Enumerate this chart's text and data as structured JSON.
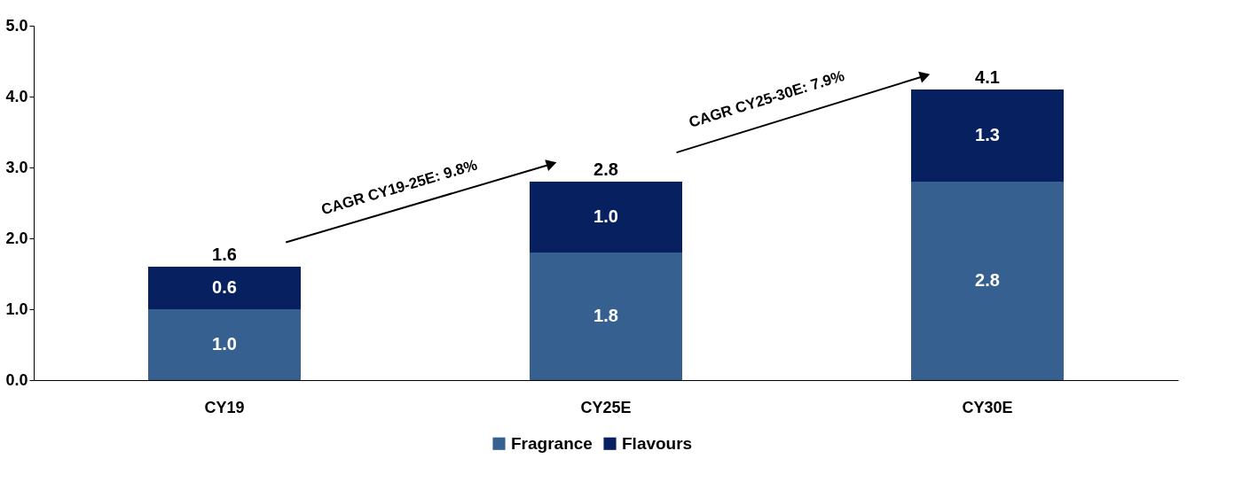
{
  "chart_data": {
    "type": "bar",
    "stacked": true,
    "categories": [
      "CY19",
      "CY25E",
      "CY30E"
    ],
    "series": [
      {
        "name": "Fragrance",
        "color": "#35608f",
        "values": [
          1.0,
          1.8,
          2.8
        ],
        "value_labels": [
          "1.0",
          "1.8",
          "2.8"
        ]
      },
      {
        "name": "Flavours",
        "color": "#062060",
        "values": [
          0.6,
          1.0,
          1.3
        ],
        "value_labels": [
          "0.6",
          "1.0",
          "1.3"
        ]
      }
    ],
    "totals": [
      "1.6",
      "2.8",
      "4.1"
    ],
    "ylim": [
      0,
      5
    ],
    "yticks": [
      {
        "value": 0,
        "label": "0.0"
      },
      {
        "value": 1,
        "label": "1.0"
      },
      {
        "value": 2,
        "label": "2.0"
      },
      {
        "value": 3,
        "label": "3.0"
      },
      {
        "value": 4,
        "label": "4.0"
      },
      {
        "value": 5,
        "label": "5.0"
      }
    ],
    "annotations": [
      "CAGR CY19-25E: 9.8%",
      "CAGR CY25-30E: 7.9%"
    ],
    "grid": false,
    "legend": "bottom"
  }
}
